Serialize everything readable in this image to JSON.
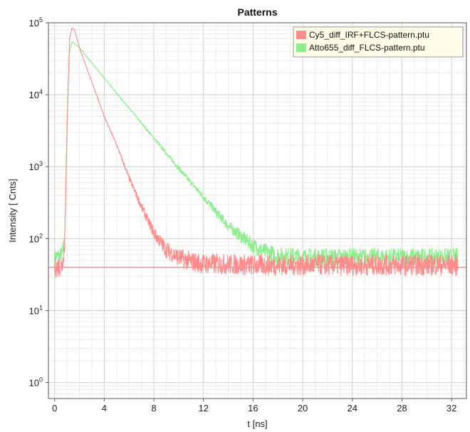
{
  "chart_data": {
    "type": "line",
    "title": "Patterns",
    "xlabel": "t [ns]",
    "ylabel": "Intensity [ Cnts]",
    "xlim": [
      -0.5,
      33.2
    ],
    "ylim": [
      0.6,
      100000
    ],
    "yscale": "log",
    "grid": true,
    "legend_position": "top-right",
    "x_ticks": [
      "0",
      "4",
      "8",
      "12",
      "16",
      "20",
      "24",
      "28",
      "32"
    ],
    "y_ticks": [
      {
        "mantissa": "10",
        "exp": "0"
      },
      {
        "mantissa": "10",
        "exp": "1"
      },
      {
        "mantissa": "10",
        "exp": "2"
      },
      {
        "mantissa": "10",
        "exp": "3"
      },
      {
        "mantissa": "10",
        "exp": "4"
      },
      {
        "mantissa": "10",
        "exp": "5"
      }
    ],
    "series": [
      {
        "name": "Cy5_diff_IRF+FLCS-pattern.ptu",
        "color": "#ff8c8c",
        "points": [
          [
            0.0,
            40
          ],
          [
            0.6,
            42
          ],
          [
            0.8,
            80
          ],
          [
            1.0,
            3000
          ],
          [
            1.2,
            60000
          ],
          [
            1.4,
            85000
          ],
          [
            1.6,
            80000
          ],
          [
            2.0,
            45000
          ],
          [
            3.0,
            15000
          ],
          [
            4.0,
            5000
          ],
          [
            5.0,
            2000
          ],
          [
            6.0,
            700
          ],
          [
            7.0,
            280
          ],
          [
            8.0,
            120
          ],
          [
            9.0,
            70
          ],
          [
            10.0,
            55
          ],
          [
            11.0,
            48
          ],
          [
            12.0,
            45
          ],
          [
            16.0,
            43
          ],
          [
            20.0,
            43
          ],
          [
            24.0,
            43
          ],
          [
            28.0,
            43
          ],
          [
            32.5,
            43
          ]
        ]
      },
      {
        "name": "Atto655_diff_FLCS-pattern.ptu",
        "color": "#8cee8c",
        "points": [
          [
            0.0,
            55
          ],
          [
            0.6,
            58
          ],
          [
            0.8,
            100
          ],
          [
            1.0,
            4000
          ],
          [
            1.2,
            40000
          ],
          [
            1.4,
            55000
          ],
          [
            2.0,
            45000
          ],
          [
            4.0,
            17000
          ],
          [
            6.0,
            6500
          ],
          [
            8.0,
            2500
          ],
          [
            10.0,
            950
          ],
          [
            12.0,
            380
          ],
          [
            14.0,
            150
          ],
          [
            16.0,
            80
          ],
          [
            17.0,
            65
          ],
          [
            18.0,
            58
          ],
          [
            20.0,
            55
          ],
          [
            24.0,
            55
          ],
          [
            28.0,
            55
          ],
          [
            32.5,
            55
          ]
        ]
      }
    ],
    "reference_line": {
      "y": 40,
      "color": "#ff8c8c"
    }
  }
}
